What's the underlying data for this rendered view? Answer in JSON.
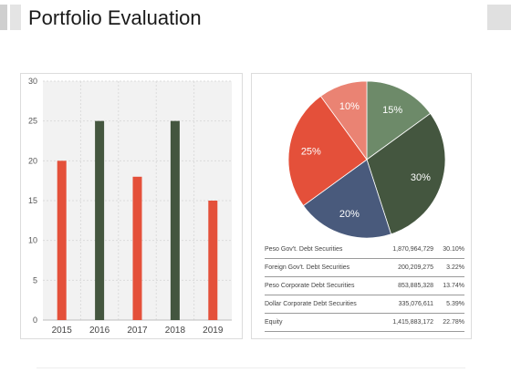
{
  "title": "Portfolio Evaluation",
  "colors": {
    "red": "#e4503a",
    "green": "#44563f",
    "blue": "#495a7c",
    "salmon": "#ea8373",
    "light_green": "#6d8a69"
  },
  "chart_data": [
    {
      "type": "bar",
      "categories": [
        "2015",
        "2016",
        "2017",
        "2018",
        "2019"
      ],
      "values": [
        20,
        25,
        18,
        25,
        15
      ],
      "bar_colors": [
        "#e4503a",
        "#44563f",
        "#e4503a",
        "#44563f",
        "#e4503a"
      ],
      "ylim": [
        0,
        30
      ],
      "yticks": [
        "0",
        "5",
        "10",
        "15",
        "20",
        "25",
        "30"
      ],
      "grid": true
    },
    {
      "type": "pie",
      "slices": [
        {
          "label": "15%",
          "value": 15,
          "color": "#6d8a69"
        },
        {
          "label": "30%",
          "value": 30,
          "color": "#44563f"
        },
        {
          "label": "20%",
          "value": 20,
          "color": "#495a7c"
        },
        {
          "label": "25%",
          "value": 25,
          "color": "#e4503a"
        },
        {
          "label": "10%",
          "value": 10,
          "color": "#ea8373"
        }
      ]
    },
    {
      "type": "table",
      "rows": [
        {
          "name": "Peso Gov't. Debt Securities",
          "amount": "1,870,964,729",
          "pct": "30.10%"
        },
        {
          "name": "Foreign Gov't. Debt Securities",
          "amount": "200,209,275",
          "pct": "3.22%"
        },
        {
          "name": "Peso Corporate Debt Securities",
          "amount": "853,885,328",
          "pct": "13.74%"
        },
        {
          "name": "Dollar Corporate Debt Securities",
          "amount": "335,076,611",
          "pct": "5.39%"
        },
        {
          "name": "Equity",
          "amount": "1,415,883,172",
          "pct": "22.78%"
        }
      ]
    }
  ]
}
